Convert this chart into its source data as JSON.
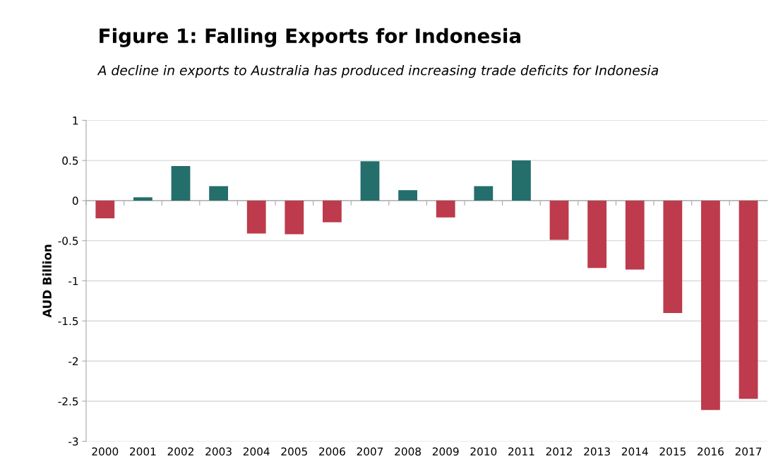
{
  "chart_data": {
    "type": "bar",
    "title": "Figure 1: Falling Exports for Indonesia",
    "subtitle": "A decline in exports to Australia has produced increasing trade deficits for Indonesia",
    "ylabel": "AUD Billion",
    "categories": [
      "2000",
      "2001",
      "2002",
      "2003",
      "2004",
      "2005",
      "2006",
      "2007",
      "2008",
      "2009",
      "2010",
      "2011",
      "2012",
      "2013",
      "2014",
      "2015",
      "2016",
      "2017"
    ],
    "values": [
      -0.22,
      0.04,
      0.43,
      0.18,
      -0.41,
      -0.42,
      -0.27,
      0.49,
      0.13,
      -0.21,
      0.18,
      0.5,
      -0.49,
      -0.84,
      -0.86,
      -1.4,
      -2.61,
      -2.47
    ],
    "colors": [
      "#bd3b4c",
      "#246e6c",
      "#246e6c",
      "#246e6c",
      "#bd3b4c",
      "#bd3b4c",
      "#bd3b4c",
      "#246e6c",
      "#246e6c",
      "#bd3b4c",
      "#246e6c",
      "#246e6c",
      "#bd3b4c",
      "#bd3b4c",
      "#bd3b4c",
      "#bd3b4c",
      "#bd3b4c",
      "#bd3b4c"
    ],
    "ylim": [
      -3,
      1
    ],
    "yticks": [
      -3,
      -2.5,
      -2,
      -1.5,
      -1,
      -0.5,
      0,
      0.5,
      1
    ],
    "grid": "y"
  }
}
